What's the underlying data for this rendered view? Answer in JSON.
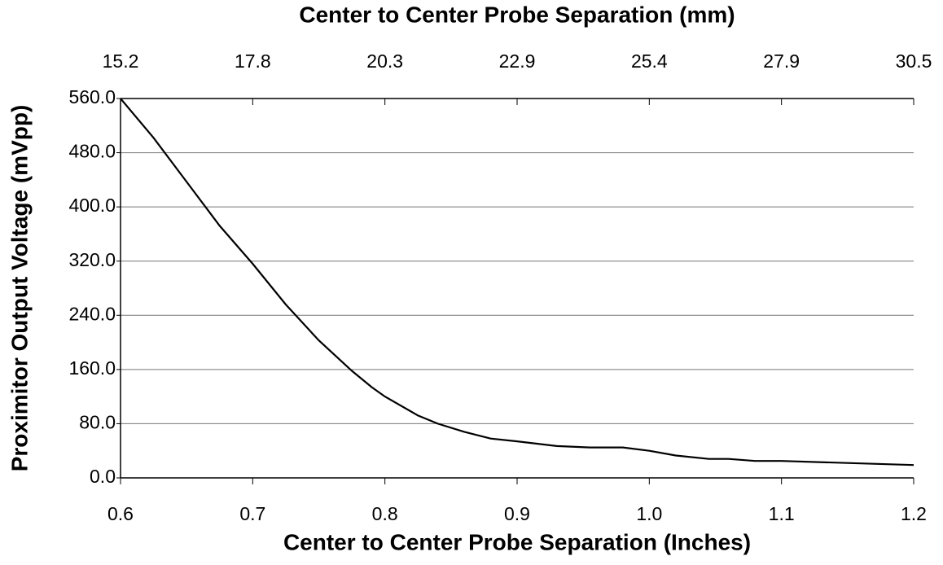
{
  "chart_data": {
    "type": "line",
    "xlabel": "Center to Center Probe Separation (Inches)",
    "x2label": "Center to Center Probe Separation (mm)",
    "ylabel": "Proximitor Output Voltage (mVpp)",
    "xlim": [
      0.6,
      1.2
    ],
    "xticks": [
      0.6,
      0.7,
      0.8,
      0.9,
      {
        "value": 1,
        "label": "1.0"
      },
      1.1,
      1.2
    ],
    "x2lim": [
      15.24,
      30.48
    ],
    "x2ticks": [
      {
        "value": 15.24,
        "label": "15.2"
      },
      {
        "value": 17.78,
        "label": "17.8"
      },
      {
        "value": 20.32,
        "label": "20.3"
      },
      {
        "value": 22.86,
        "label": "22.9"
      },
      {
        "value": 25.4,
        "label": "25.4"
      },
      {
        "value": 27.94,
        "label": "27.9"
      },
      {
        "value": 30.48,
        "label": "30.5"
      }
    ],
    "ylim": [
      0,
      560
    ],
    "yticks": [
      {
        "value": 0,
        "label": "0.0"
      },
      {
        "value": 80,
        "label": "80.0"
      },
      {
        "value": 160,
        "label": "160.0"
      },
      {
        "value": 240,
        "label": "240.0"
      },
      {
        "value": 320,
        "label": "320.0"
      },
      {
        "value": 400,
        "label": "400.0"
      },
      {
        "value": 480,
        "label": "480.0"
      },
      {
        "value": 560,
        "label": "560.0"
      }
    ],
    "grid": true,
    "series": [
      {
        "color": "#000000",
        "x": [
          0.6,
          0.625,
          0.65,
          0.675,
          0.7,
          0.725,
          0.75,
          0.775,
          0.79,
          0.8,
          0.825,
          0.84,
          0.86,
          0.88,
          0.9,
          0.93,
          0.955,
          0.98,
          1.0,
          1.02,
          1.045,
          1.06,
          1.08,
          1.1,
          1.2
        ],
        "values": [
          560,
          502,
          437,
          372,
          316,
          256,
          203,
          158,
          134,
          120,
          92,
          80,
          68,
          58,
          54,
          47,
          45,
          45,
          40,
          33,
          28,
          28,
          25,
          25,
          19
        ]
      }
    ]
  }
}
